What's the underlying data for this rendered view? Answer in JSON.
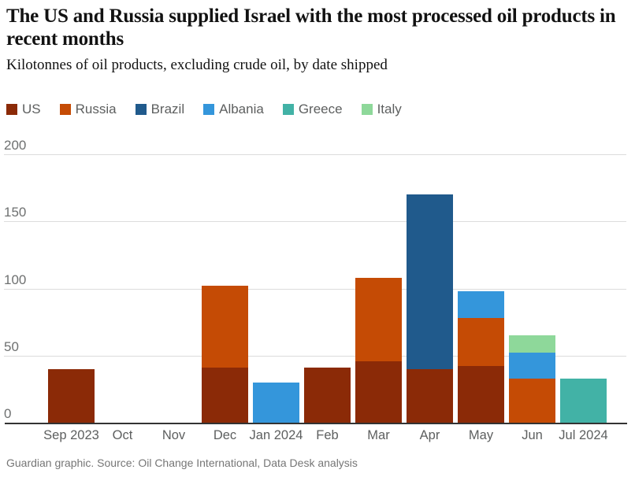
{
  "header": {
    "title": "The US and Russia supplied Israel with the most processed oil products in recent months",
    "subtitle": "Kilotonnes of oil products, excluding crude oil, by date shipped"
  },
  "chart_data": {
    "type": "bar",
    "stacked": true,
    "title": "The US and Russia supplied Israel with the most processed oil products in recent months",
    "subtitle": "Kilotonnes of oil products, excluding crude oil, by date shipped",
    "categories": [
      "Sep 2023",
      "Oct",
      "Nov",
      "Dec",
      "Jan 2024",
      "Feb",
      "Mar",
      "Apr",
      "May",
      "Jun",
      "Jul 2024"
    ],
    "series": [
      {
        "name": "US",
        "color": "#8b2a07",
        "values": [
          40,
          0,
          0,
          41,
          0,
          41,
          46,
          40,
          42,
          0,
          0
        ]
      },
      {
        "name": "Russia",
        "color": "#c54b05",
        "values": [
          0,
          0,
          0,
          61,
          0,
          0,
          62,
          0,
          36,
          33,
          0
        ]
      },
      {
        "name": "Brazil",
        "color": "#205a8c",
        "values": [
          0,
          0,
          0,
          0,
          0,
          0,
          0,
          130,
          0,
          0,
          0
        ]
      },
      {
        "name": "Albania",
        "color": "#3496db",
        "values": [
          0,
          0,
          0,
          0,
          30,
          0,
          0,
          0,
          20,
          19,
          0
        ]
      },
      {
        "name": "Greece",
        "color": "#42b2a6",
        "values": [
          0,
          0,
          0,
          0,
          0,
          0,
          0,
          0,
          0,
          0,
          33
        ]
      },
      {
        "name": "Italy",
        "color": "#8ed89a",
        "values": [
          0,
          0,
          0,
          0,
          0,
          0,
          0,
          0,
          0,
          13,
          0
        ]
      }
    ],
    "xlabel": "",
    "ylabel": "",
    "ylim": [
      0,
      200
    ],
    "yticks": [
      0,
      50,
      100,
      150,
      200
    ],
    "grid": "horizontal",
    "legend_position": "top"
  },
  "footer": {
    "credit": "Guardian graphic. Source: Oil Change International, Data Desk analysis"
  }
}
